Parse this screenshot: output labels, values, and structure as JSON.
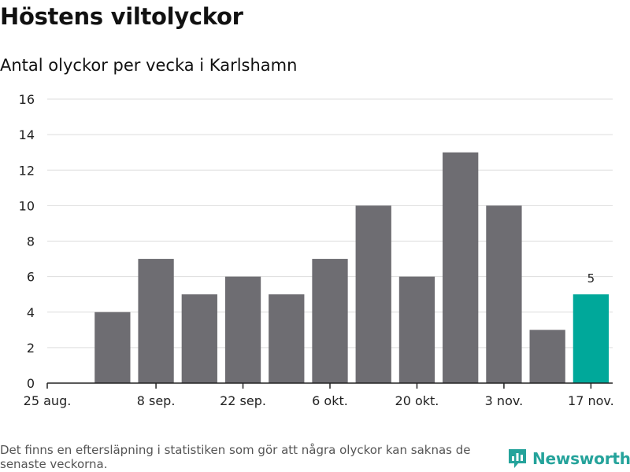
{
  "title": "Höstens viltolyckor",
  "subtitle": "Antal olyckor per vecka i Karlshamn",
  "footnote": "Det finns en eftersläpning i statistiken som gör att några olyckor kan saknas de senaste veckorna.",
  "brand": {
    "name": "Newsworthy",
    "icon": "newsworthy-logo-icon"
  },
  "colors": {
    "bar": "#6e6d72",
    "highlight": "#00a89a",
    "grid": "#dddddd",
    "axis": "#222222"
  },
  "chart_data": {
    "type": "bar",
    "title": "Höstens viltolyckor",
    "subtitle": "Antal olyckor per vecka i Karlshamn",
    "xlabel": "",
    "ylabel": "",
    "categories": [
      "25 aug.",
      "1 sep.",
      "8 sep.",
      "15 sep.",
      "22 sep.",
      "29 sep.",
      "6 okt.",
      "13 okt.",
      "20 okt.",
      "27 okt.",
      "3 nov.",
      "10 nov.",
      "17 nov."
    ],
    "values": [
      0,
      4,
      7,
      5,
      6,
      5,
      7,
      10,
      6,
      13,
      10,
      3,
      5
    ],
    "ylim": [
      0,
      16
    ],
    "yticks": [
      0,
      2,
      4,
      6,
      8,
      10,
      12,
      14,
      16
    ],
    "xtick_labels": [
      "25 aug.",
      "8 sep.",
      "22 sep.",
      "6 okt.",
      "20 okt.",
      "3 nov.",
      "17 nov."
    ],
    "highlight_index": 12,
    "data_labels": [
      {
        "index": 12,
        "text": "5"
      }
    ],
    "grid": true,
    "legend": "none"
  }
}
